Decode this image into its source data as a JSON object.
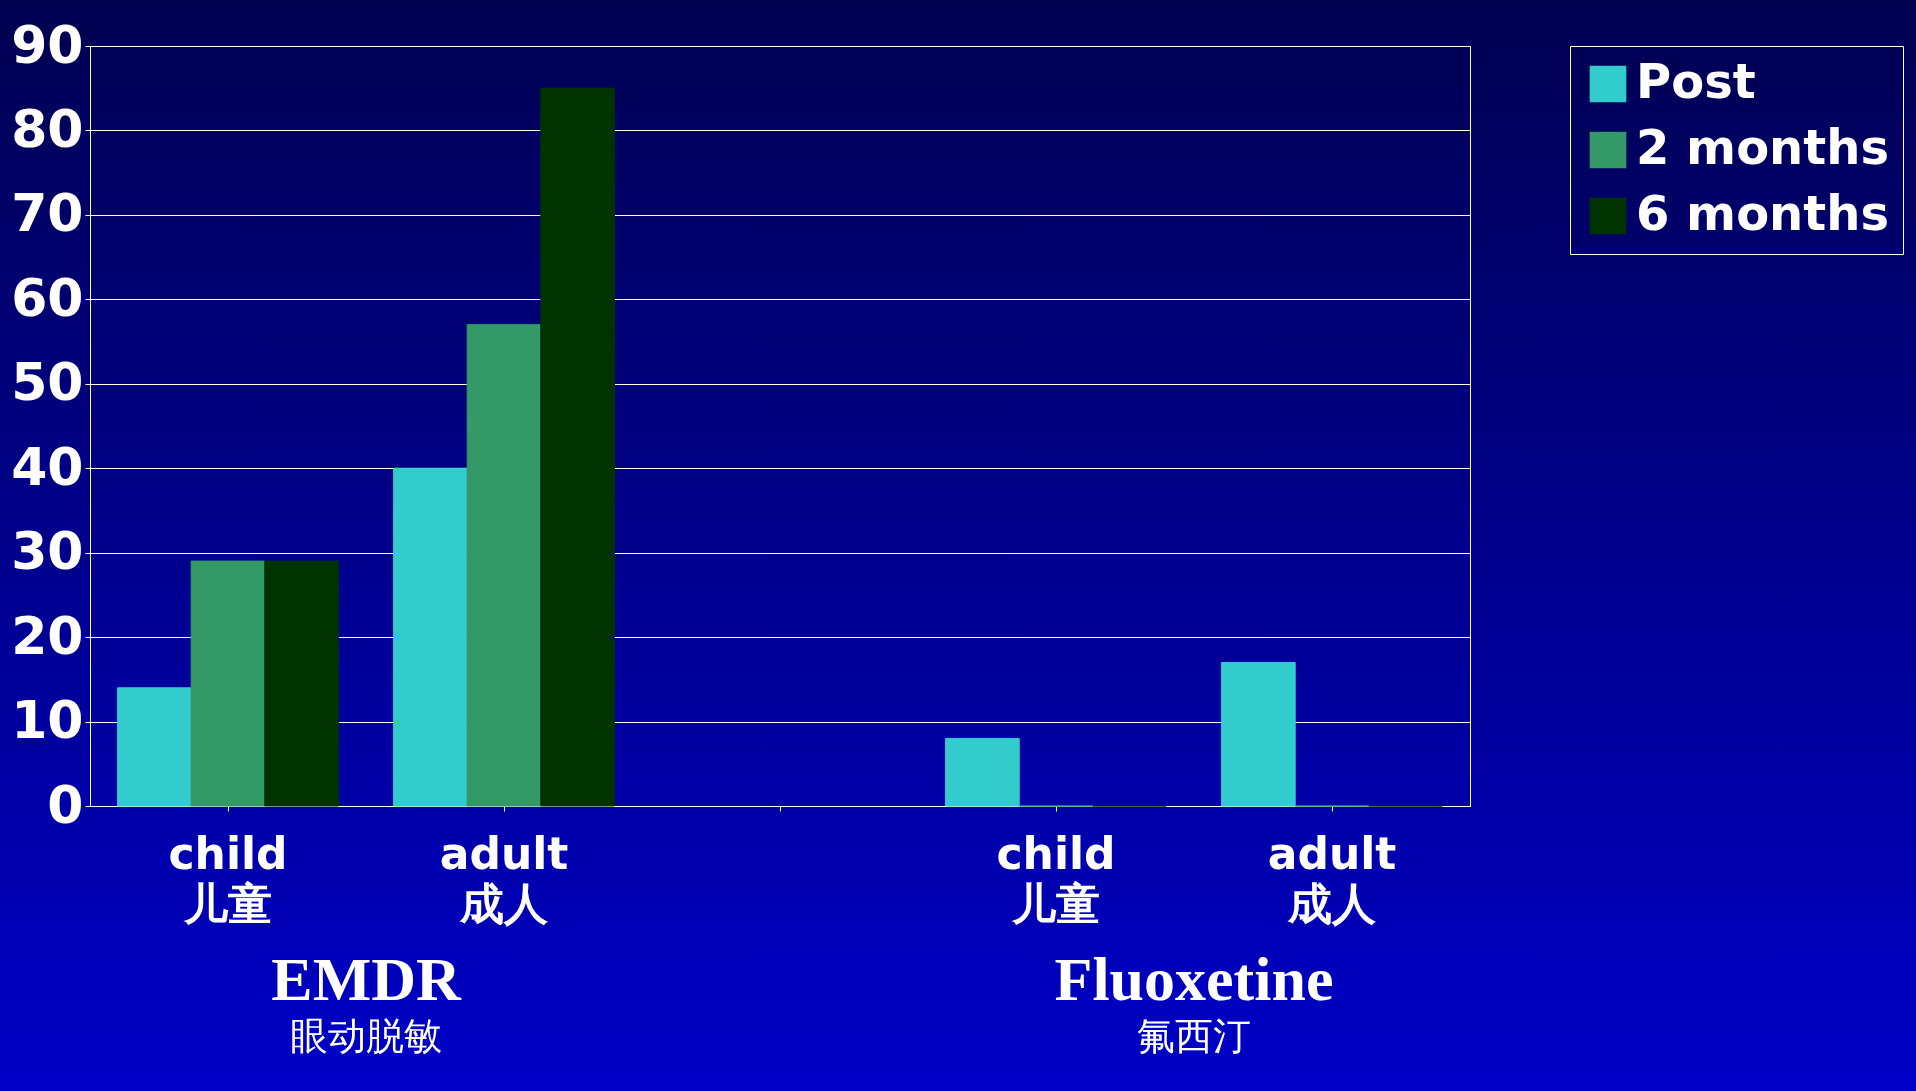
{
  "chart_data": {
    "type": "bar",
    "categories": [
      "child\n儿童",
      "adult\n成人",
      null,
      "child\n儿童",
      "adult\n成人"
    ],
    "series": [
      {
        "name": "Post",
        "color": "#33cccc",
        "values": [
          14,
          40,
          null,
          8,
          17
        ]
      },
      {
        "name": "2 months",
        "color": "#339966",
        "values": [
          29,
          57,
          null,
          0,
          0
        ]
      },
      {
        "name": "6 months",
        "color": "#003300",
        "values": [
          29,
          85,
          null,
          0,
          0
        ]
      }
    ],
    "ylim": [
      0,
      90
    ],
    "yticks": [
      0,
      10,
      20,
      30,
      40,
      50,
      60,
      70,
      80,
      90
    ],
    "grid": "y",
    "legend": "right",
    "annotations": [
      "EMDR",
      "眼动脱敏",
      "Fluoxetine",
      "氟西汀"
    ]
  }
}
